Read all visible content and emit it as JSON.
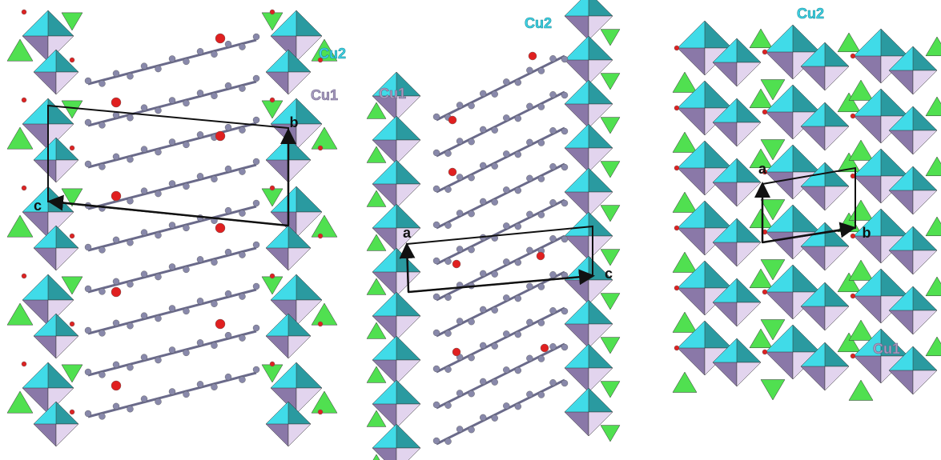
{
  "panels": [
    {
      "labels": [
        "Cu2",
        "Cu1",
        "b",
        "c"
      ]
    },
    {
      "labels": [
        "Cu1",
        "Cu2",
        "a",
        "c"
      ]
    },
    {
      "labels": [
        "Cu2",
        "a",
        "b",
        "Cu1"
      ]
    }
  ]
}
